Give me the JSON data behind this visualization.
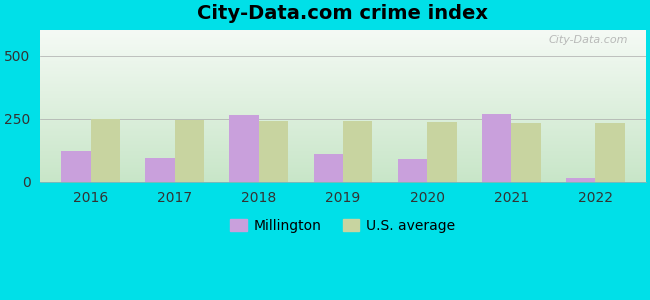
{
  "title": "City-Data.com crime index",
  "years": [
    2016,
    2017,
    2018,
    2019,
    2020,
    2021,
    2022
  ],
  "millington": [
    120,
    95,
    265,
    110,
    90,
    270,
    15
  ],
  "us_average": [
    248,
    245,
    240,
    240,
    235,
    232,
    232
  ],
  "millington_color": "#c9a0dc",
  "us_avg_color": "#c8d4a0",
  "bar_width": 0.35,
  "ylim": [
    0,
    600
  ],
  "yticks": [
    0,
    250,
    500
  ],
  "bg_top_color": "#f5faf5",
  "bg_bottom_color": "#c8e6c8",
  "figure_bg": "#00e0e8",
  "watermark": "City-Data.com",
  "title_fontsize": 14,
  "legend_fontsize": 10,
  "tick_fontsize": 10
}
